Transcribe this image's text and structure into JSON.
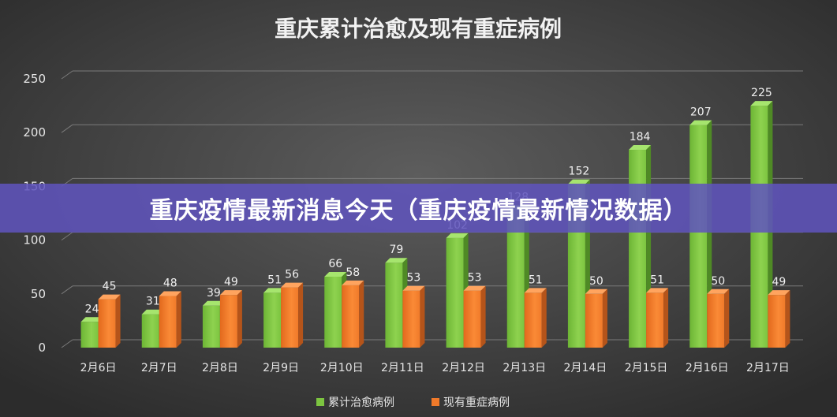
{
  "chart_data": {
    "type": "bar",
    "title": "重庆累计治愈及现有重症病例",
    "categories": [
      "2月6日",
      "2月7日",
      "2月8日",
      "2月9日",
      "2月10日",
      "2月11日",
      "2月12日",
      "2月13日",
      "2月14日",
      "2月15日",
      "2月16日",
      "2月17日"
    ],
    "series": [
      {
        "name": "累计治愈病例",
        "values": [
          24,
          31,
          39,
          51,
          66,
          79,
          102,
          128,
          152,
          184,
          207,
          225
        ]
      },
      {
        "name": "现有重症病例",
        "values": [
          45,
          48,
          49,
          56,
          58,
          53,
          53,
          51,
          50,
          51,
          50,
          49
        ]
      }
    ],
    "yticks": [
      "0",
      "50",
      "100",
      "150",
      "200",
      "250"
    ],
    "ylim": [
      0,
      250
    ],
    "grid": true,
    "legend": "bottom",
    "xlabel": "",
    "ylabel": ""
  },
  "banner": {
    "text": "重庆疫情最新消息今天（重庆疫情最新情况数据）"
  },
  "colors": {
    "cured": "#7cc440",
    "severe": "#f07a2a",
    "background_center": "#5a5a5a",
    "background_edge": "#2e2e2e"
  }
}
